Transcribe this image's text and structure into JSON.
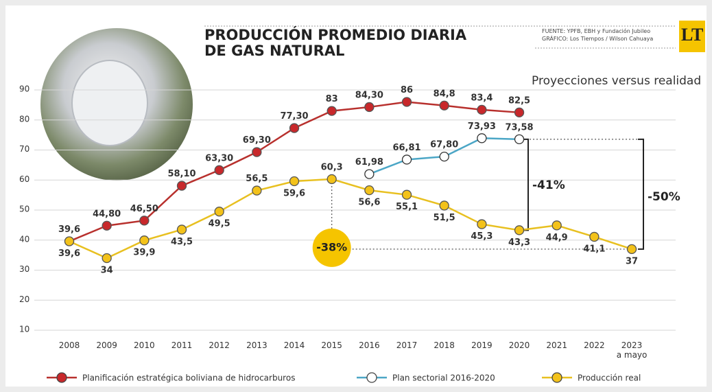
{
  "chart_data": {
    "type": "line",
    "title": "PRODUCCIÓN PROMEDIO DIARIA\nDE GAS NATURAL",
    "subtitle": "Proyecciones versus realidad",
    "source": "FUENTE: YPFB, EBH y Fundación Jubileo",
    "credit": "GRÁFICO: Los Tiempos / Wilson Cahuaya",
    "logo": "LT",
    "categories": [
      "2008",
      "2009",
      "2010",
      "2011",
      "2012",
      "2013",
      "2014",
      "2015",
      "2016",
      "2017",
      "2018",
      "2019",
      "2020",
      "2021",
      "2022",
      "2023\na mayo"
    ],
    "ylim": [
      10,
      90
    ],
    "yticks": [
      10,
      20,
      30,
      40,
      50,
      60,
      70,
      80,
      90
    ],
    "grid": true,
    "series": [
      {
        "name": "Planificación estratégica boliviana de hidrocarburos",
        "color": "#b8302d",
        "marker_fill": "#c8282b",
        "values": [
          39.6,
          44.8,
          46.5,
          58.1,
          63.3,
          69.3,
          77.3,
          83,
          84.3,
          86,
          84.8,
          83.4,
          82.5,
          null,
          null,
          null
        ],
        "value_labels": [
          "39,6",
          "44,80",
          "46,50",
          "58,10",
          "63,30",
          "69,30",
          "77,30",
          "83",
          "84,30",
          "86",
          "84,8",
          "83,4",
          "82,5",
          null,
          null,
          null
        ]
      },
      {
        "name": "Plan sectorial 2016-2020",
        "color": "#4ba6c6",
        "marker_fill": "#ffffff",
        "values": [
          null,
          null,
          null,
          null,
          null,
          null,
          null,
          null,
          61.98,
          66.81,
          67.8,
          73.93,
          73.58,
          null,
          null,
          null
        ],
        "value_labels": [
          null,
          null,
          null,
          null,
          null,
          null,
          null,
          null,
          "61,98",
          "66,81",
          "67,80",
          "73,93",
          "73,58",
          null,
          null,
          null
        ]
      },
      {
        "name": "Producción real",
        "color": "#e8c020",
        "marker_fill": "#f3c21a",
        "values": [
          39.6,
          34,
          39.9,
          43.5,
          49.5,
          56.5,
          59.6,
          60.3,
          56.6,
          55.1,
          51.5,
          45.3,
          43.3,
          44.9,
          41.1,
          37
        ],
        "value_labels": [
          "39,6",
          "34",
          "39,9",
          "43,5",
          "49,5",
          "56,5",
          "59,6",
          "60,3",
          "56,6",
          "55,1",
          "51,5",
          "45,3",
          "43,3",
          "44,9",
          "41,1",
          "37"
        ]
      }
    ],
    "annotations": [
      "-38%",
      "-41%",
      "-50%"
    ]
  }
}
